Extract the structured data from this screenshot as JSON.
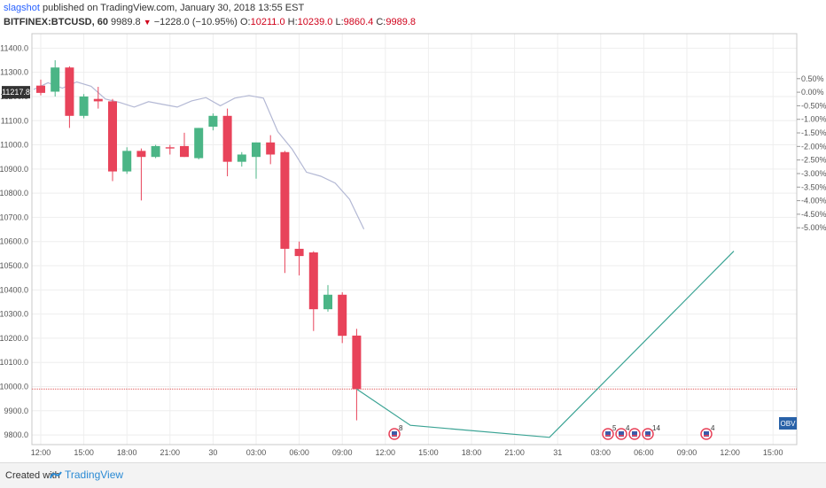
{
  "header": {
    "user": "slagshot",
    "published": "published on TradingView.com, January 30, 2018 13:55 EST",
    "symbol": "BITFINEX:BTCUSD, 60",
    "last": "9989.8",
    "change": "−1228.0 (−10.95%)",
    "open_label": "O:",
    "open": "10211.0",
    "high_label": "H:",
    "high": "10239.0",
    "low_label": "L:",
    "low": "9860.4",
    "close_label": "C:",
    "close": "9989.8"
  },
  "footer": {
    "created_with": "Created with",
    "brand": "TradingView"
  },
  "colors": {
    "up": "#4bb586",
    "down": "#e8435a",
    "compare_line": "#b3b8d4",
    "obv_line": "#3aa394",
    "last_price_line": "#e05555",
    "obv_badge": "#2962a8"
  },
  "chart_data": {
    "type": "candlestick",
    "symbol": "BITFINEX:BTCUSD",
    "interval": "60",
    "y_left_ticks": [
      11400,
      11300,
      11200,
      11100,
      11000,
      10900,
      10800,
      10700,
      10600,
      10500,
      10400,
      10300,
      10200,
      10100,
      10000,
      9900,
      9800
    ],
    "y_left_tick_labels": [
      "11400.0",
      "11300.0",
      "11200.0",
      "11100.0",
      "11000.0",
      "10900.0",
      "10800.0",
      "10700.0",
      "10600.0",
      "10500.0",
      "10400.0",
      "10300.0",
      "10200.0",
      "10100.0",
      "10000.0",
      "9900.0",
      "9800.0"
    ],
    "y_right_ticks": [
      "0.50%",
      "0.00%",
      "-0.50%",
      "-1.00%",
      "-1.50%",
      "-2.00%",
      "-2.50%",
      "-3.00%",
      "-3.50%",
      "-4.00%",
      "-4.50%",
      "-5.00%"
    ],
    "y_right_values": [
      0.5,
      0.0,
      -0.5,
      -1.0,
      -1.5,
      -2.0,
      -2.5,
      -3.0,
      -3.5,
      -4.0,
      -4.5,
      -5.0
    ],
    "x_tick_labels": [
      "12:00",
      "15:00",
      "18:00",
      "21:00",
      "30",
      "03:00",
      "06:00",
      "09:00",
      "12:00",
      "15:00",
      "18:00",
      "21:00",
      "31",
      "03:00",
      "06:00",
      "09:00",
      "12:00",
      "15:00"
    ],
    "y_range": [
      9760,
      11460
    ],
    "current_price_label": "11217.8",
    "current_price": 11217.8,
    "last_price_line": 9989.8,
    "candles": [
      {
        "o": 11245,
        "h": 11270,
        "l": 11205,
        "c": 11215
      },
      {
        "o": 11220,
        "h": 11350,
        "l": 11200,
        "c": 11320
      },
      {
        "o": 11320,
        "h": 11325,
        "l": 11070,
        "c": 11120
      },
      {
        "o": 11120,
        "h": 11210,
        "l": 11110,
        "c": 11200
      },
      {
        "o": 11190,
        "h": 11240,
        "l": 11150,
        "c": 11180
      },
      {
        "o": 11180,
        "h": 11190,
        "l": 10850,
        "c": 10890
      },
      {
        "o": 10890,
        "h": 10990,
        "l": 10880,
        "c": 10975
      },
      {
        "o": 10975,
        "h": 10985,
        "l": 10770,
        "c": 10950
      },
      {
        "o": 10950,
        "h": 11000,
        "l": 10945,
        "c": 10995
      },
      {
        "o": 10990,
        "h": 11000,
        "l": 10960,
        "c": 10985
      },
      {
        "o": 10995,
        "h": 11050,
        "l": 10950,
        "c": 10950
      },
      {
        "o": 10945,
        "h": 11070,
        "l": 10940,
        "c": 11070
      },
      {
        "o": 11075,
        "h": 11130,
        "l": 11060,
        "c": 11120
      },
      {
        "o": 11120,
        "h": 11150,
        "l": 10870,
        "c": 10930
      },
      {
        "o": 10930,
        "h": 10970,
        "l": 10910,
        "c": 10960
      },
      {
        "o": 10950,
        "h": 11010,
        "l": 10860,
        "c": 11010
      },
      {
        "o": 11010,
        "h": 11040,
        "l": 10920,
        "c": 10960
      },
      {
        "o": 10970,
        "h": 10975,
        "l": 10470,
        "c": 10570
      },
      {
        "o": 10570,
        "h": 10600,
        "l": 10460,
        "c": 10540
      },
      {
        "o": 10555,
        "h": 10560,
        "l": 10230,
        "c": 10320
      },
      {
        "o": 10320,
        "h": 10420,
        "l": 10310,
        "c": 10380
      },
      {
        "o": 10380,
        "h": 10390,
        "l": 10180,
        "c": 10210
      },
      {
        "o": 10211,
        "h": 10239,
        "l": 9860.4,
        "c": 9989.8
      }
    ],
    "compare_series_pct": [
      0.1,
      0.35,
      0.15,
      0.38,
      0.22,
      -0.25,
      -0.38,
      -0.55,
      -0.35,
      -0.45,
      -0.55,
      -0.32,
      -0.2,
      -0.5,
      -0.22,
      -0.12,
      -0.22,
      -1.45,
      -2.1,
      -2.95,
      -3.1,
      -3.35,
      -3.95,
      -5.05
    ],
    "obv_badge": "OBV",
    "obv_series": [
      9990,
      9840,
      9790,
      10560
    ],
    "event_markers": [
      {
        "count": "8"
      },
      {
        "count": "5"
      },
      {
        "count": "4"
      },
      {
        "count": ""
      },
      {
        "count": "14"
      },
      {
        "count": "4"
      }
    ]
  }
}
